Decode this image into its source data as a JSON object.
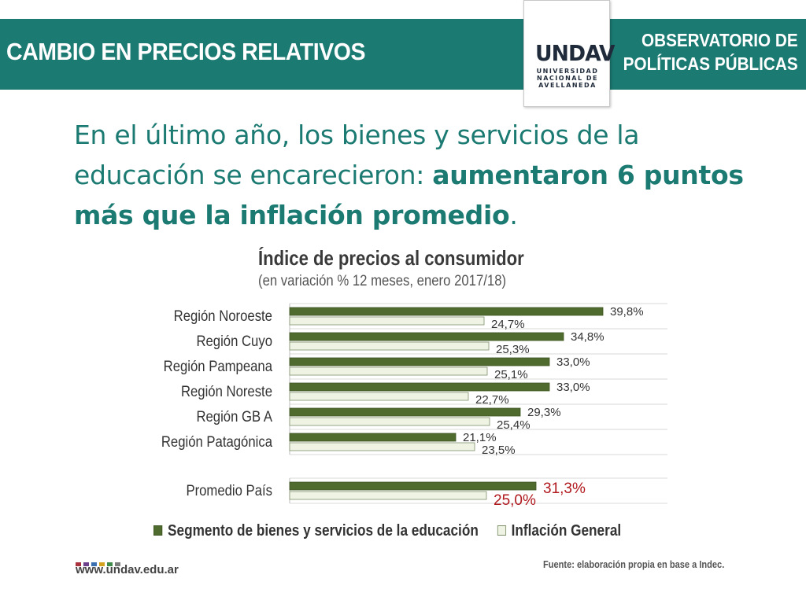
{
  "header": {
    "title": "CAMBIO EN PRECIOS RELATIVOS",
    "observatory_line1": "OBSERVATORIO DE",
    "observatory_line2": "POLÍTICAS PÚBLICAS",
    "logo_mark": "UNDAV",
    "logo_line1": "UNIVERSIDAD",
    "logo_line2": "NACIONAL DE",
    "logo_line3": "AVELLANEDA"
  },
  "headline": {
    "normal": "En el último año, los bienes y servicios de la educación se encarecieron: ",
    "bold": "aumentaron 6 puntos más que la inflación promedio",
    "end": "."
  },
  "chart_data": {
    "type": "bar",
    "orientation": "horizontal",
    "title": "Índice de precios al consumidor",
    "subtitle": "(en variación % 12 meses, enero 2017/18)",
    "categories": [
      "Región Noroeste",
      "Región Cuyo",
      "Región Pampeana",
      "Región Noreste",
      "Región GB A",
      "Región Patagónica",
      "Promedio País"
    ],
    "series": [
      {
        "name": "Segmento de bienes y servicios de la educación",
        "color": "#4f6b2e",
        "values": [
          39.8,
          34.8,
          33.0,
          33.0,
          29.3,
          21.1,
          31.3
        ],
        "labels": [
          "39,8%",
          "34,8%",
          "33,0%",
          "33,0%",
          "29,3%",
          "21,1%",
          "31,3%"
        ]
      },
      {
        "name": "Inflación General",
        "color": "#eef3e4",
        "values": [
          24.7,
          25.3,
          25.1,
          22.7,
          25.4,
          23.5,
          25.0
        ],
        "labels": [
          "24,7%",
          "25,3%",
          "25,1%",
          "22,7%",
          "25,4%",
          "23,5%",
          "25,0%"
        ]
      }
    ],
    "xlim": [
      0,
      48
    ],
    "highlight_color": "#b0191e",
    "grid": true,
    "legend": "bottom"
  },
  "footer": {
    "site": "www.undav.edu.ar",
    "source": "Fuente: elaboración propia en base a Indec.",
    "dot_colors": [
      "#a8323e",
      "#6b3f8a",
      "#3a6fb0",
      "#d4a21c",
      "#3e8a4a",
      "#7d7d7d"
    ]
  }
}
